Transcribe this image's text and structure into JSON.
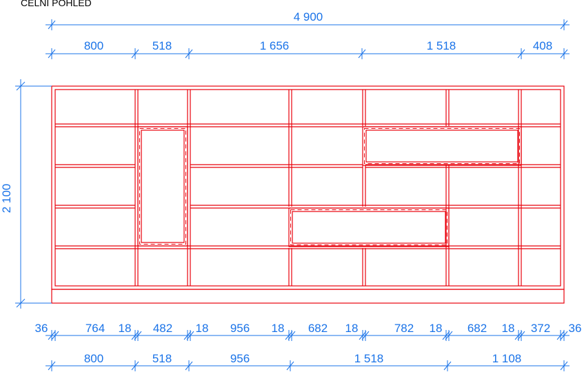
{
  "title": "ČELNÍ POHLED",
  "colors": {
    "dimension": "#1a73e8",
    "outline": "#e8000b",
    "title": "#000000"
  },
  "dimensions": {
    "overall_width": "4 900",
    "overall_height": "2 100",
    "top_row": [
      "800",
      "518",
      "1 656",
      "1 518",
      "408"
    ],
    "detail_row": [
      "36",
      "764",
      "18",
      "482",
      "18",
      "956",
      "18",
      "682",
      "18",
      "782",
      "18",
      "682",
      "18",
      "372",
      "36"
    ],
    "bottom_row": [
      "800",
      "518",
      "956",
      "1 518",
      "1 108"
    ]
  }
}
